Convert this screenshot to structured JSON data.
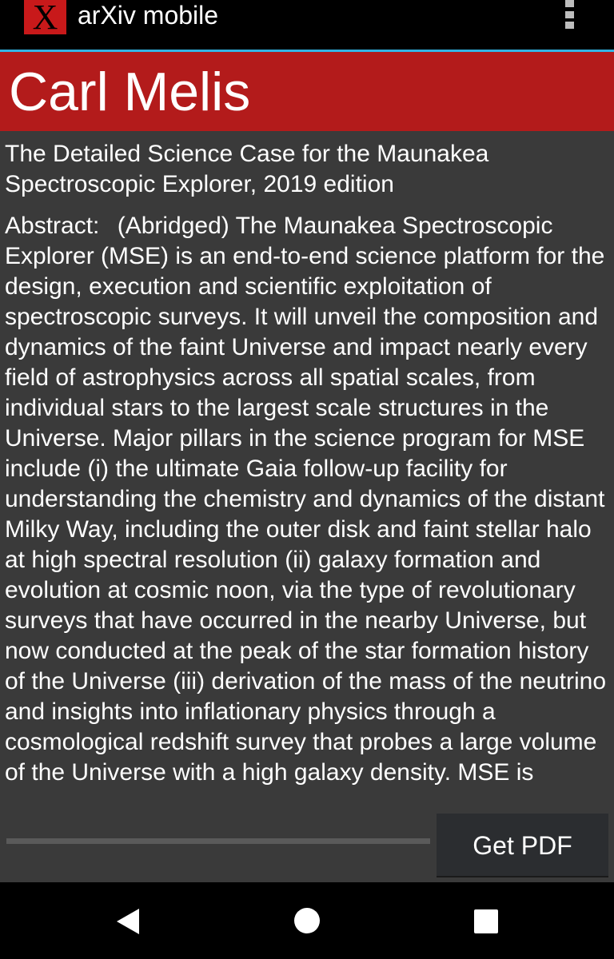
{
  "app": {
    "logo_glyph": "X",
    "title": "arXiv mobile"
  },
  "icons": {
    "overflow": "overflow-menu-icon",
    "back": "back-icon",
    "home": "home-icon",
    "recents": "recents-icon"
  },
  "author": {
    "name": "Carl Melis"
  },
  "paper": {
    "title": "The Detailed Science Case for the Maunakea Spectroscopic Explorer, 2019 edition",
    "abstract_label": "Abstract:",
    "abstract_text": "(Abridged) The Maunakea Spectroscopic Explorer (MSE) is an end-to-end science platform for the design, execution and scientific exploitation of spectroscopic surveys. It will unveil the composition and dynamics of the faint Universe and impact nearly every field of astrophysics across all spatial scales, from individual stars to the largest scale structures in the Universe. Major pillars in the science program for MSE include (i) the ultimate Gaia follow-up facility for understanding the chemistry and dynamics of the distant Milky Way, including the outer disk and faint stellar halo at high spectral resolution (ii) galaxy formation and evolution at cosmic noon, via the type of revolutionary surveys that have occurred in the nearby Universe, but now conducted at the peak of the star formation history of the Universe (iii) derivation of the mass of the neutrino and insights into inflationary physics through a cosmological redshift survey that probes a large volume of the Universe with a high galaxy density. MSE is"
  },
  "download": {
    "progress_percent": 0,
    "button_label": "Get PDF"
  },
  "colors": {
    "accent": "#33b5e5",
    "header_red": "#b31b1b",
    "logo_red": "#c8191a",
    "background": "#3a3a3a"
  }
}
